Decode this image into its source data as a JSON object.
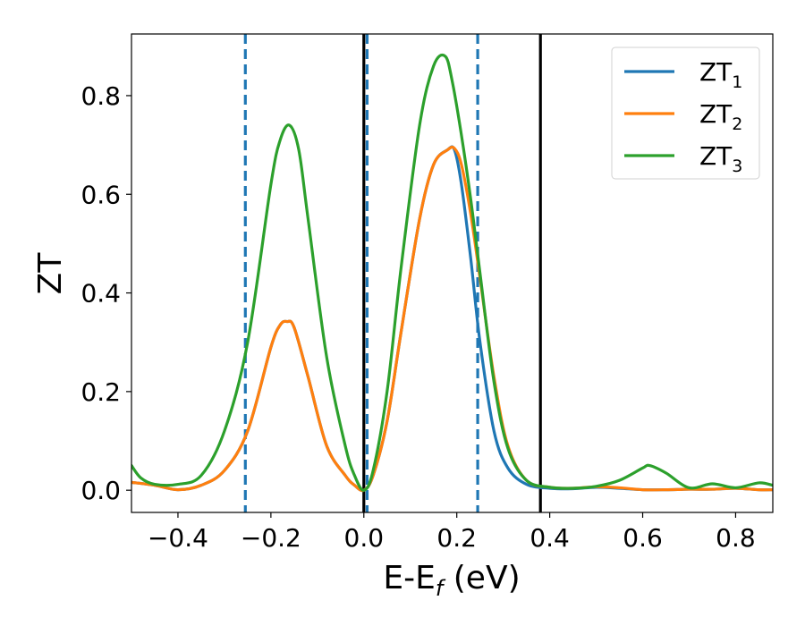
{
  "chart_data": {
    "type": "line",
    "xlabel": "E-E",
    "xlabel_sub": "f",
    "xlabel_unit": " (eV)",
    "ylabel": "ZT",
    "xlim": [
      -0.5,
      0.88
    ],
    "ylim": [
      -0.045,
      0.925
    ],
    "xticks": [
      -0.4,
      -0.2,
      0.0,
      0.2,
      0.4,
      0.6,
      0.8
    ],
    "xtick_labels": [
      "−0.4",
      "−0.2",
      "0.0",
      "0.2",
      "0.4",
      "0.6",
      "0.8"
    ],
    "yticks": [
      0.0,
      0.2,
      0.4,
      0.6,
      0.8
    ],
    "ytick_labels": [
      "0.0",
      "0.2",
      "0.4",
      "0.6",
      "0.8"
    ],
    "grid": false,
    "legend_position": "top-right",
    "series": [
      {
        "name": "ZT",
        "name_sub": "1",
        "color": "#1f77b4",
        "x": [
          -0.5,
          -0.45,
          -0.4,
          -0.35,
          -0.3,
          -0.25,
          -0.2,
          -0.18,
          -0.165,
          -0.15,
          -0.12,
          -0.08,
          -0.04,
          -0.02,
          0.0,
          0.02,
          0.05,
          0.08,
          0.12,
          0.15,
          0.18,
          0.195,
          0.21,
          0.23,
          0.25,
          0.28,
          0.31,
          0.35,
          0.4,
          0.45,
          0.5,
          0.55,
          0.6,
          0.65,
          0.7,
          0.75,
          0.8,
          0.85,
          0.88
        ],
        "y": [
          0.016,
          0.01,
          0.001,
          0.01,
          0.04,
          0.12,
          0.29,
          0.335,
          0.342,
          0.33,
          0.23,
          0.09,
          0.03,
          0.01,
          0.0,
          0.03,
          0.14,
          0.32,
          0.55,
          0.66,
          0.69,
          0.69,
          0.62,
          0.47,
          0.3,
          0.12,
          0.045,
          0.012,
          0.004,
          0.003,
          0.006,
          0.004,
          0.001,
          0.001,
          0.002,
          0.002,
          0.004,
          0.001,
          0.001
        ]
      },
      {
        "name": "ZT",
        "name_sub": "2",
        "color": "#ff7f0e",
        "x": [
          -0.5,
          -0.45,
          -0.4,
          -0.35,
          -0.3,
          -0.25,
          -0.2,
          -0.18,
          -0.165,
          -0.15,
          -0.12,
          -0.08,
          -0.04,
          -0.02,
          0.0,
          0.02,
          0.05,
          0.08,
          0.12,
          0.15,
          0.18,
          0.195,
          0.21,
          0.23,
          0.25,
          0.28,
          0.31,
          0.35,
          0.4,
          0.45,
          0.5,
          0.55,
          0.6,
          0.65,
          0.7,
          0.75,
          0.8,
          0.85,
          0.88
        ],
        "y": [
          0.016,
          0.01,
          0.001,
          0.01,
          0.04,
          0.12,
          0.29,
          0.335,
          0.342,
          0.33,
          0.23,
          0.09,
          0.03,
          0.01,
          0.0,
          0.03,
          0.14,
          0.32,
          0.55,
          0.66,
          0.69,
          0.693,
          0.66,
          0.56,
          0.43,
          0.23,
          0.09,
          0.02,
          0.006,
          0.004,
          0.007,
          0.005,
          0.001,
          0.001,
          0.002,
          0.002,
          0.004,
          0.001,
          0.001
        ]
      },
      {
        "name": "ZT",
        "name_sub": "3",
        "color": "#2ca02c",
        "x": [
          -0.5,
          -0.48,
          -0.45,
          -0.4,
          -0.35,
          -0.3,
          -0.25,
          -0.2,
          -0.18,
          -0.16,
          -0.14,
          -0.12,
          -0.08,
          -0.04,
          -0.02,
          0.0,
          0.02,
          0.05,
          0.08,
          0.12,
          0.15,
          0.175,
          0.19,
          0.21,
          0.23,
          0.25,
          0.28,
          0.31,
          0.35,
          0.4,
          0.45,
          0.5,
          0.55,
          0.6,
          0.615,
          0.65,
          0.7,
          0.75,
          0.8,
          0.85,
          0.88
        ],
        "y": [
          0.05,
          0.025,
          0.012,
          0.012,
          0.03,
          0.12,
          0.3,
          0.62,
          0.71,
          0.74,
          0.69,
          0.55,
          0.27,
          0.09,
          0.03,
          0.0,
          0.04,
          0.2,
          0.45,
          0.74,
          0.86,
          0.88,
          0.83,
          0.72,
          0.59,
          0.44,
          0.22,
          0.085,
          0.02,
          0.006,
          0.004,
          0.008,
          0.02,
          0.045,
          0.05,
          0.035,
          0.005,
          0.013,
          0.005,
          0.015,
          0.01
        ]
      }
    ],
    "reference_lines": [
      {
        "x": -0.255,
        "style": "dashed",
        "color": "#1f77b4"
      },
      {
        "x": 0.0,
        "style": "solid",
        "color": "#000000"
      },
      {
        "x": 0.007,
        "style": "dashed",
        "color": "#1f77b4"
      },
      {
        "x": 0.245,
        "style": "dashed",
        "color": "#1f77b4"
      },
      {
        "x": 0.38,
        "style": "solid",
        "color": "#000000"
      }
    ]
  }
}
